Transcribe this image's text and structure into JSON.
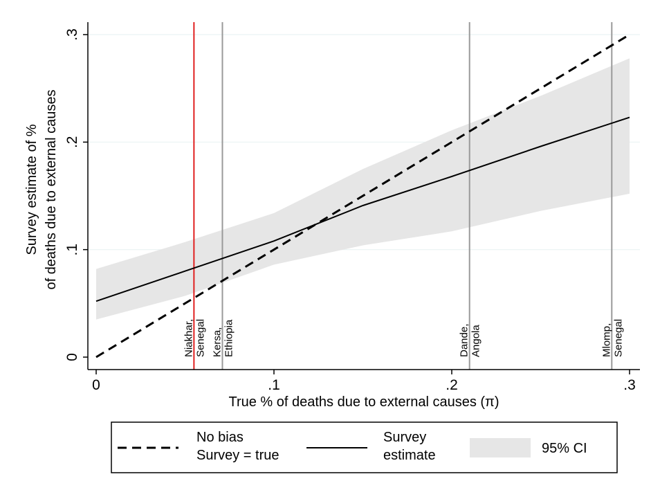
{
  "chart_data": {
    "type": "line",
    "xlabel": "True % of deaths due to external causes (π)",
    "ylabel_lines": [
      "Survey estimate of %",
      "of deaths due to external causes"
    ],
    "xlim": [
      0,
      0.3
    ],
    "ylim": [
      0,
      0.3
    ],
    "x_ticks": [
      {
        "value": 0,
        "label": "0"
      },
      {
        "value": 0.1,
        "label": ".1"
      },
      {
        "value": 0.2,
        "label": ".2"
      },
      {
        "value": 0.3,
        "label": ".3"
      }
    ],
    "y_ticks": [
      {
        "value": 0,
        "label": "0"
      },
      {
        "value": 0.1,
        "label": ".1"
      },
      {
        "value": 0.2,
        "label": ".2"
      },
      {
        "value": 0.3,
        "label": ".3"
      }
    ],
    "grid": true,
    "legend_placement": "bottom",
    "series": [
      {
        "name": "No bias Survey = true",
        "legend_lines": [
          "No bias",
          "Survey = true"
        ],
        "style": "dashed",
        "color": "#000000",
        "x": [
          0,
          0.3
        ],
        "y": [
          0,
          0.3
        ]
      },
      {
        "name": "Survey estimate",
        "legend_lines": [
          "Survey",
          "estimate"
        ],
        "style": "solid",
        "color": "#000000",
        "x": [
          0,
          0.05,
          0.1,
          0.15,
          0.2,
          0.25,
          0.3
        ],
        "y": [
          0.052,
          0.08,
          0.108,
          0.141,
          0.168,
          0.196,
          0.223
        ]
      }
    ],
    "ci_band": {
      "name": "95% CI",
      "legend_label": "95% CI",
      "color": "#e6e6e6",
      "x": [
        0,
        0.05,
        0.1,
        0.15,
        0.2,
        0.25,
        0.3
      ],
      "lower": [
        0.035,
        0.057,
        0.086,
        0.104,
        0.117,
        0.136,
        0.152
      ],
      "upper": [
        0.082,
        0.107,
        0.134,
        0.175,
        0.211,
        0.243,
        0.278
      ]
    },
    "reference_lines": [
      {
        "x": 0.055,
        "label_lines": [
          "Niakhar,",
          "Senegal"
        ],
        "color": "#e02020"
      },
      {
        "x": 0.071,
        "label_lines": [
          "Kersa,",
          "Ethiopia"
        ],
        "color": "#999999"
      },
      {
        "x": 0.21,
        "label_lines": [
          "Dande,",
          "Angola"
        ],
        "color": "#999999"
      },
      {
        "x": 0.29,
        "label_lines": [
          "Mlomp,",
          "Senegal"
        ],
        "color": "#999999"
      }
    ]
  }
}
